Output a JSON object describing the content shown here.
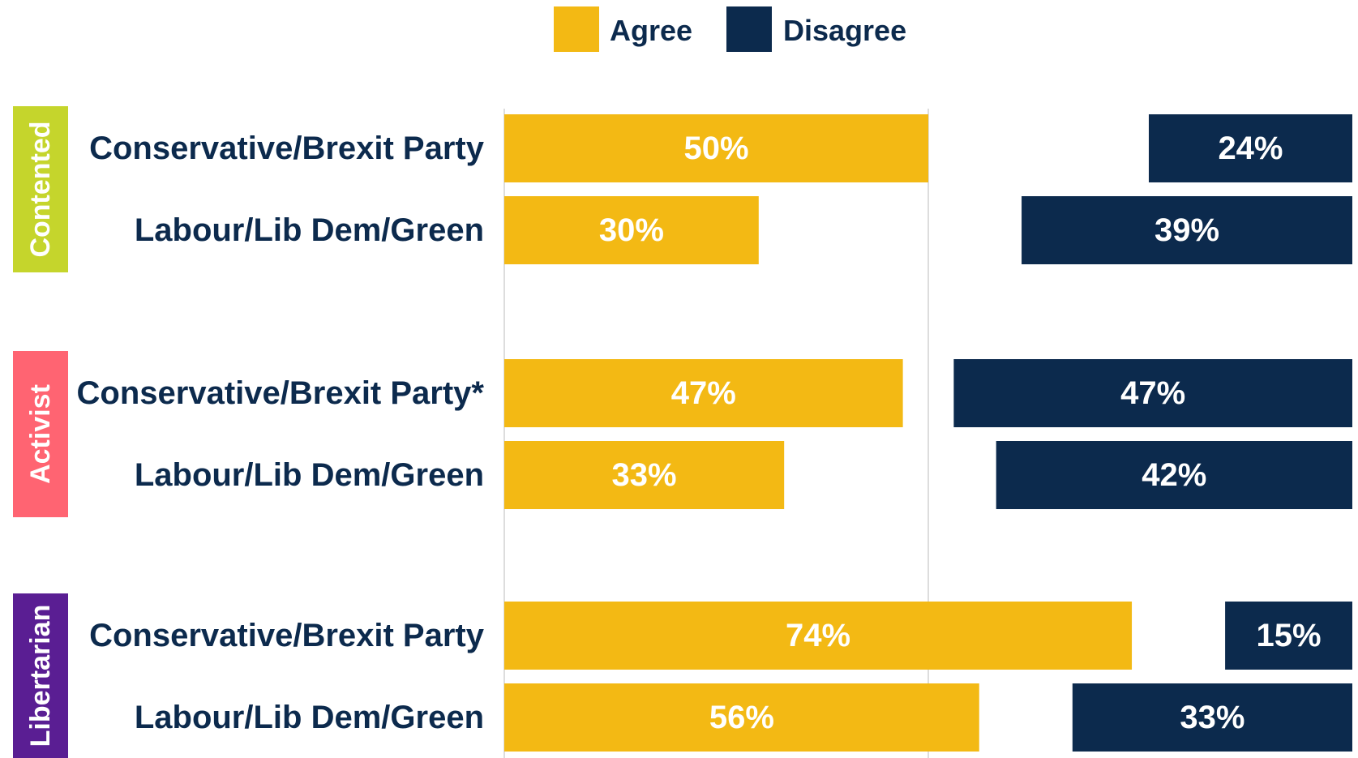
{
  "chart_data": {
    "type": "bar",
    "orientation": "horizontal",
    "legend": [
      {
        "name": "Agree",
        "color": "#f3b914"
      },
      {
        "name": "Disagree",
        "color": "#0c2a4d"
      }
    ],
    "legend_position": "top-center",
    "grid": false,
    "xlim": [
      0,
      100
    ],
    "groups": [
      {
        "label": "Contented",
        "color": "#c5d52c",
        "rows": [
          {
            "label": "Conservative/Brexit Party",
            "agree": 50,
            "disagree": 24,
            "agree_label": "50%",
            "disagree_label": "24%"
          },
          {
            "label": "Labour/Lib Dem/Green",
            "agree": 30,
            "disagree": 39,
            "agree_label": "30%",
            "disagree_label": "39%"
          }
        ]
      },
      {
        "label": "Activist",
        "color": "#ff6472",
        "rows": [
          {
            "label": "Conservative/Brexit Party*",
            "agree": 47,
            "disagree": 47,
            "agree_label": "47%",
            "disagree_label": "47%"
          },
          {
            "label": "Labour/Lib Dem/Green",
            "agree": 33,
            "disagree": 42,
            "agree_label": "33%",
            "disagree_label": "42%"
          }
        ]
      },
      {
        "label": "Libertarian",
        "color": "#5a1e93",
        "rows": [
          {
            "label": "Conservative/Brexit Party",
            "agree": 74,
            "disagree": 15,
            "agree_label": "74%",
            "disagree_label": "15%"
          },
          {
            "label": "Labour/Lib Dem/Green",
            "agree": 56,
            "disagree": 33,
            "agree_label": "56%",
            "disagree_label": "33%"
          }
        ]
      }
    ]
  }
}
